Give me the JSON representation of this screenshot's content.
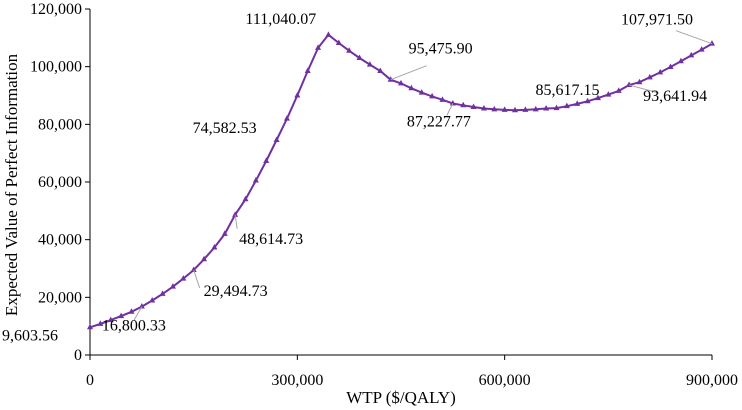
{
  "chart_data": {
    "type": "line",
    "title": "",
    "xlabel": "WTP ($/QALY)",
    "ylabel": "Expected Value of Perfect Information",
    "xlim": [
      0,
      900000
    ],
    "ylim": [
      0,
      120000
    ],
    "x_ticks": [
      {
        "value": 0,
        "label": "0"
      },
      {
        "value": 300000,
        "label": "300,000"
      },
      {
        "value": 600000,
        "label": "600,000"
      },
      {
        "value": 900000,
        "label": "900,000"
      }
    ],
    "y_ticks": [
      {
        "value": 0,
        "label": "0"
      },
      {
        "value": 20000,
        "label": "20,000"
      },
      {
        "value": 40000,
        "label": "40,000"
      },
      {
        "value": 60000,
        "label": "60,000"
      },
      {
        "value": 80000,
        "label": "80,000"
      },
      {
        "value": 100000,
        "label": "100,000"
      },
      {
        "value": 120000,
        "label": "120,000"
      }
    ],
    "grid": false,
    "legend": "none",
    "line_color": "#7030a0",
    "marker": "triangle",
    "series": [
      {
        "x": [
          0,
          15000,
          30000,
          45000,
          60000,
          75000,
          90000,
          105000,
          120000,
          135000,
          150000,
          165000,
          180000,
          195000,
          210000,
          225000,
          240000,
          255000,
          270000,
          285000,
          300000,
          315000,
          330000,
          345000,
          360000,
          375000,
          390000,
          405000,
          420000,
          435000,
          450000,
          465000,
          480000,
          495000,
          510000,
          525000,
          540000,
          555000,
          570000,
          585000,
          600000,
          615000,
          630000,
          645000,
          660000,
          675000,
          690000,
          705000,
          720000,
          735000,
          750000,
          765000,
          780000,
          795000,
          810000,
          825000,
          840000,
          855000,
          870000,
          885000,
          900000
        ],
        "y": [
          9603.56,
          10800,
          12100,
          13500,
          15000,
          16800.33,
          18900,
          21200,
          23700,
          26500,
          29494.73,
          33200,
          37300,
          42000,
          48614.73,
          54000,
          60500,
          67300,
          74582.53,
          82000,
          90000,
          98500,
          106500,
          111040.07,
          108200,
          105500,
          103000,
          100700,
          98500,
          95475.9,
          94200,
          92500,
          91000,
          89700,
          88500,
          87227.77,
          86600,
          86000,
          85500,
          85200,
          85000,
          84900,
          85000,
          85200,
          85500,
          85617.15,
          86300,
          87100,
          88000,
          89100,
          90300,
          91600,
          93641.94,
          94600,
          96300,
          98000,
          99900,
          101900,
          103900,
          105900,
          107971.5
        ]
      }
    ],
    "annotations": [
      {
        "text": "9,603.56",
        "x": 0,
        "y": 9603.56
      },
      {
        "text": "16,800.33",
        "x": 75000,
        "y": 16800.33
      },
      {
        "text": "29,494.73",
        "x": 150000,
        "y": 29494.73
      },
      {
        "text": "48,614.73",
        "x": 210000,
        "y": 48614.73
      },
      {
        "text": "74,582.53",
        "x": 270000,
        "y": 74582.53
      },
      {
        "text": "111,040.07",
        "x": 345000,
        "y": 111040.07
      },
      {
        "text": "95,475.90",
        "x": 435000,
        "y": 95475.9
      },
      {
        "text": "87,227.77",
        "x": 525000,
        "y": 87227.77
      },
      {
        "text": "85,617.15",
        "x": 675000,
        "y": 85617.15
      },
      {
        "text": "93,641.94",
        "x": 780000,
        "y": 93641.94
      },
      {
        "text": "107,971.50",
        "x": 900000,
        "y": 107971.5
      }
    ]
  }
}
